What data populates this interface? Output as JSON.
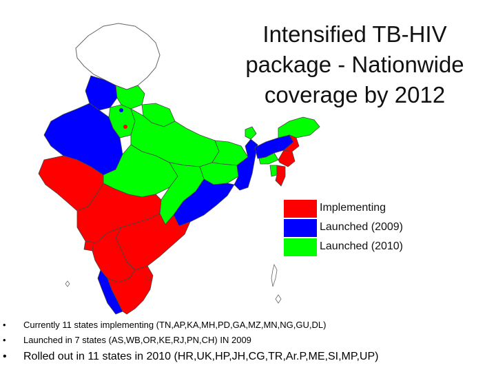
{
  "title": "Intensified TB-HIV package - Nationwide coverage by 2012",
  "colors": {
    "implementing": "#ff0000",
    "launched_2009": "#0000ff",
    "launched_2010": "#00ff00",
    "unmapped": "#ffffff",
    "border": "#666666"
  },
  "legend": [
    {
      "label": "Implementing",
      "color": "#ff0000"
    },
    {
      "label": "Launched (2009)",
      "color": "#0000ff"
    },
    {
      "label": "Launched (2010)",
      "color": "#00ff00"
    }
  ],
  "bullets": [
    {
      "marker": "•",
      "text": "Currently 11 states implementing (TN,AP,KA,MH,PD,GA,MZ,MN,NG,GU,DL)",
      "size": "small"
    },
    {
      "marker": "•",
      "text": "Launched in 7 states (AS,WB,OR,KE,RJ,PN,CH) IN 2009",
      "size": "small"
    },
    {
      "marker": "•",
      "text": "Rolled out in 11 states in 2010 (HR,UK,HP,JH,CG,TR,Ar.P,ME,SI,MP,UP)",
      "size": "large"
    }
  ]
}
